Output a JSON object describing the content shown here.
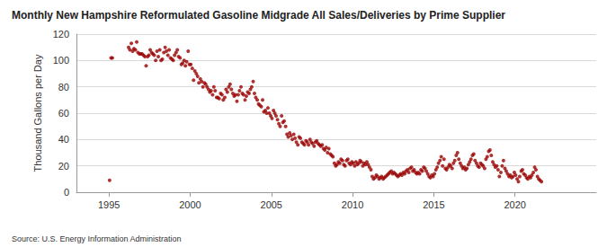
{
  "chart_data": {
    "type": "scatter",
    "title": "Monthly New Hampshire Reformulated Gasoline Midgrade All Sales/Deliveries by Prime Supplier",
    "y_label": "Thousand Gallons per Day",
    "source": "Source: U.S. Energy Information Administration",
    "color": "#990000",
    "marker": "circle",
    "grid": true,
    "xlim": [
      1993,
      2025
    ],
    "xticks": [
      1995,
      2000,
      2005,
      2010,
      2015,
      2020
    ],
    "ylim": [
      0,
      120
    ],
    "yticks": [
      0,
      20,
      40,
      60,
      80,
      100,
      120
    ],
    "x": [
      1995.04,
      1995.13,
      1995.21,
      1996.21,
      1996.29,
      1996.38,
      1996.46,
      1996.54,
      1996.63,
      1996.71,
      1996.79,
      1996.88,
      1996.96,
      1997.04,
      1997.13,
      1997.21,
      1997.29,
      1997.38,
      1997.46,
      1997.54,
      1997.63,
      1997.71,
      1997.79,
      1997.88,
      1997.96,
      1998.04,
      1998.13,
      1998.21,
      1998.29,
      1998.38,
      1998.46,
      1998.54,
      1998.63,
      1998.71,
      1998.79,
      1998.88,
      1998.96,
      1999.04,
      1999.13,
      1999.21,
      1999.29,
      1999.38,
      1999.46,
      1999.54,
      1999.63,
      1999.71,
      1999.79,
      1999.88,
      1999.96,
      2000.04,
      2000.13,
      2000.21,
      2000.29,
      2000.38,
      2000.46,
      2000.54,
      2000.63,
      2000.71,
      2000.79,
      2000.88,
      2000.96,
      2001.04,
      2001.13,
      2001.21,
      2001.29,
      2001.38,
      2001.46,
      2001.54,
      2001.63,
      2001.71,
      2001.79,
      2001.88,
      2001.96,
      2002.04,
      2002.13,
      2002.21,
      2002.29,
      2002.38,
      2002.46,
      2002.54,
      2002.63,
      2002.71,
      2002.79,
      2002.88,
      2002.96,
      2003.04,
      2003.13,
      2003.21,
      2003.29,
      2003.38,
      2003.46,
      2003.54,
      2003.63,
      2003.71,
      2003.79,
      2003.88,
      2003.96,
      2004.04,
      2004.13,
      2004.21,
      2004.29,
      2004.38,
      2004.46,
      2004.54,
      2004.63,
      2004.71,
      2004.79,
      2004.88,
      2004.96,
      2005.04,
      2005.13,
      2005.21,
      2005.29,
      2005.38,
      2005.46,
      2005.54,
      2005.63,
      2005.71,
      2005.79,
      2005.88,
      2005.96,
      2006.04,
      2006.13,
      2006.21,
      2006.29,
      2006.38,
      2006.46,
      2006.54,
      2006.63,
      2006.71,
      2006.79,
      2006.88,
      2006.96,
      2007.04,
      2007.13,
      2007.21,
      2007.29,
      2007.38,
      2007.46,
      2007.54,
      2007.63,
      2007.71,
      2007.79,
      2007.88,
      2007.96,
      2008.04,
      2008.13,
      2008.21,
      2008.29,
      2008.38,
      2008.46,
      2008.54,
      2008.63,
      2008.71,
      2008.79,
      2008.88,
      2008.96,
      2009.04,
      2009.13,
      2009.21,
      2009.29,
      2009.38,
      2009.46,
      2009.54,
      2009.63,
      2009.71,
      2009.79,
      2009.88,
      2009.96,
      2010.04,
      2010.13,
      2010.21,
      2010.29,
      2010.38,
      2010.46,
      2010.54,
      2010.63,
      2010.71,
      2010.79,
      2010.88,
      2010.96,
      2011.04,
      2011.13,
      2011.21,
      2011.29,
      2011.38,
      2011.46,
      2011.54,
      2011.63,
      2011.71,
      2011.79,
      2011.88,
      2011.96,
      2012.04,
      2012.13,
      2012.21,
      2012.29,
      2012.38,
      2012.46,
      2012.54,
      2012.63,
      2012.71,
      2012.79,
      2012.88,
      2012.96,
      2013.04,
      2013.13,
      2013.21,
      2013.29,
      2013.38,
      2013.46,
      2013.54,
      2013.63,
      2013.71,
      2013.79,
      2013.88,
      2013.96,
      2014.04,
      2014.13,
      2014.21,
      2014.29,
      2014.38,
      2014.46,
      2014.54,
      2014.63,
      2014.71,
      2014.79,
      2014.88,
      2014.96,
      2015.04,
      2015.13,
      2015.21,
      2015.29,
      2015.38,
      2015.46,
      2015.54,
      2015.63,
      2015.71,
      2015.79,
      2015.88,
      2015.96,
      2016.04,
      2016.13,
      2016.21,
      2016.29,
      2016.38,
      2016.46,
      2016.54,
      2016.63,
      2016.71,
      2016.79,
      2016.88,
      2016.96,
      2017.04,
      2017.13,
      2017.21,
      2017.29,
      2017.38,
      2017.46,
      2017.54,
      2017.63,
      2017.71,
      2017.79,
      2017.88,
      2017.96,
      2018.04,
      2018.13,
      2018.21,
      2018.29,
      2018.38,
      2018.46,
      2018.54,
      2018.63,
      2018.71,
      2018.79,
      2018.88,
      2018.96,
      2019.04,
      2019.13,
      2019.21,
      2019.29,
      2019.38,
      2019.46,
      2019.54,
      2019.63,
      2019.71,
      2019.79,
      2019.88,
      2019.96,
      2020.04,
      2020.13,
      2020.21,
      2020.29,
      2020.38,
      2020.46,
      2020.54,
      2020.63,
      2020.71,
      2020.79,
      2020.88,
      2020.96,
      2021.04,
      2021.13,
      2021.21,
      2021.29,
      2021.38,
      2021.46,
      2021.54,
      2021.63
    ],
    "values": [
      9,
      102,
      102,
      110,
      108,
      113,
      107,
      109,
      108,
      114,
      106,
      105,
      105,
      105,
      104,
      103,
      96,
      103,
      104,
      108,
      106,
      105,
      104,
      100,
      107,
      103,
      108,
      100,
      101,
      106,
      110,
      107,
      104,
      108,
      102,
      101,
      100,
      104,
      106,
      108,
      103,
      102,
      97,
      98,
      100,
      96,
      99,
      107,
      97,
      97,
      94,
      85,
      92,
      90,
      88,
      83,
      86,
      84,
      80,
      83,
      82,
      80,
      78,
      76,
      77,
      74,
      80,
      77,
      72,
      72,
      71,
      75,
      74,
      70,
      72,
      78,
      76,
      80,
      82,
      78,
      75,
      73,
      74,
      69,
      74,
      77,
      80,
      75,
      74,
      70,
      73,
      76,
      75,
      78,
      80,
      84,
      75,
      72,
      70,
      67,
      66,
      65,
      70,
      61,
      62,
      60,
      64,
      60,
      58,
      56,
      62,
      60,
      58,
      55,
      52,
      50,
      58,
      53,
      54,
      50,
      44,
      42,
      45,
      43,
      40,
      44,
      41,
      38,
      36,
      42,
      41,
      38,
      37,
      36,
      39,
      38,
      36,
      40,
      38,
      37,
      35,
      38,
      39,
      37,
      36,
      35,
      36,
      33,
      32,
      34,
      30,
      33,
      29,
      28,
      27,
      22,
      20,
      21,
      23,
      22,
      25,
      24,
      21,
      20,
      24,
      25,
      22,
      21,
      23,
      22,
      20,
      23,
      21,
      22,
      24,
      23,
      20,
      22,
      21,
      23,
      21,
      19,
      17,
      12,
      10,
      11,
      13,
      12,
      10,
      11,
      12,
      10,
      11,
      12,
      13,
      14,
      15,
      16,
      14,
      15,
      14,
      13,
      12,
      13,
      14,
      13,
      15,
      14,
      16,
      17,
      15,
      18,
      19,
      16,
      17,
      15,
      14,
      15,
      14,
      17,
      16,
      19,
      18,
      16,
      14,
      12,
      11,
      13,
      12,
      14,
      17,
      19,
      22,
      24,
      27,
      20,
      25,
      18,
      17,
      19,
      21,
      20,
      18,
      22,
      24,
      28,
      30,
      25,
      22,
      20,
      18,
      19,
      17,
      18,
      21,
      23,
      25,
      28,
      29,
      24,
      22,
      20,
      19,
      22,
      21,
      20,
      18,
      25,
      27,
      31,
      32,
      28,
      23,
      21,
      19,
      20,
      17,
      12,
      15,
      20,
      24,
      18,
      16,
      14,
      12,
      13,
      11,
      12,
      15,
      13,
      10,
      8,
      12,
      16,
      17,
      14,
      13,
      11,
      10,
      12,
      11,
      13,
      15,
      19,
      17,
      12,
      10,
      9,
      8
    ]
  }
}
